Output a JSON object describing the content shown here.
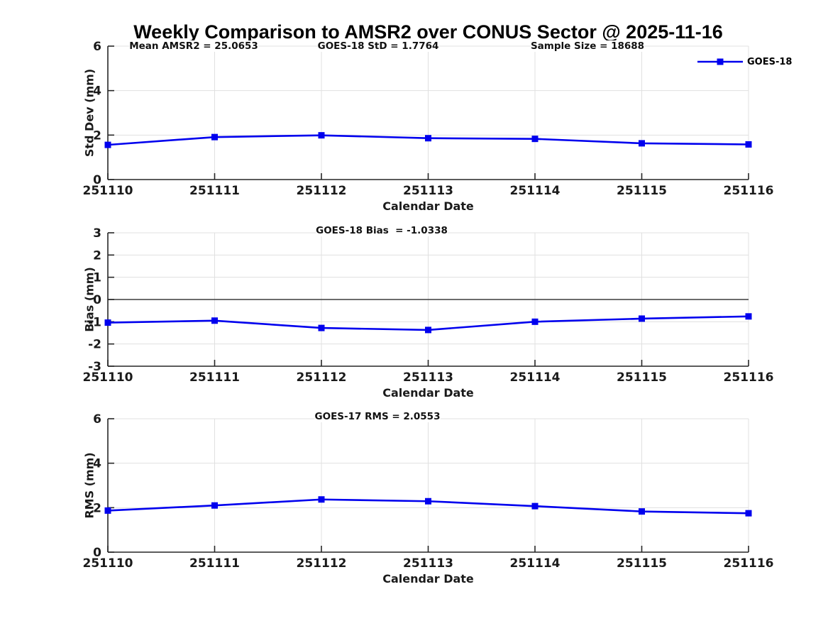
{
  "title": "Weekly Comparison to AMSR2 over CONUS Sector @ 2025-11-16",
  "legend": {
    "label": "GOES-18"
  },
  "colors": {
    "line": "#0000EE",
    "grid": "#E0E0E0",
    "axis": "#262626",
    "zero_line": "#3C3C3C",
    "text": "#1A1A1A"
  },
  "chart_data": [
    {
      "type": "line",
      "panel": "std-dev",
      "ylabel": "Std Dev (mm)",
      "xlabel": "Calendar Date",
      "ylim": [
        0,
        6
      ],
      "yticks": [
        0,
        2,
        4,
        6
      ],
      "grid": true,
      "legend_position": "top-right",
      "categories": [
        "251110",
        "251111",
        "251112",
        "251113",
        "251114",
        "251115",
        "251116"
      ],
      "series": [
        {
          "name": "GOES-18",
          "values": [
            1.56,
            1.91,
            1.99,
            1.86,
            1.83,
            1.63,
            1.58
          ]
        }
      ],
      "annotations": [
        {
          "text": "Mean AMSR2 = 25.0653"
        },
        {
          "text": "GOES-18 StD = 1.7764"
        },
        {
          "text": "Sample Size = 18688"
        }
      ]
    },
    {
      "type": "line",
      "panel": "bias",
      "ylabel": "Bias (mm)",
      "xlabel": "Calendar Date",
      "ylim": [
        -3,
        3
      ],
      "yticks": [
        3,
        2,
        1,
        0,
        -1,
        -2,
        -3
      ],
      "grid": true,
      "zero_line": true,
      "categories": [
        "251110",
        "251111",
        "251112",
        "251113",
        "251114",
        "251115",
        "251116"
      ],
      "series": [
        {
          "name": "GOES-18",
          "values": [
            -1.04,
            -0.95,
            -1.28,
            -1.37,
            -1.0,
            -0.86,
            -0.76
          ]
        }
      ],
      "annotations": [
        {
          "text": "GOES-18 Bias  = -1.0338"
        }
      ]
    },
    {
      "type": "line",
      "panel": "rms",
      "ylabel": "RMS (mm)",
      "xlabel": "Calendar Date",
      "ylim": [
        0,
        6
      ],
      "yticks": [
        0,
        2,
        4,
        6
      ],
      "grid": true,
      "categories": [
        "251110",
        "251111",
        "251112",
        "251113",
        "251114",
        "251115",
        "251116"
      ],
      "series": [
        {
          "name": "GOES-17",
          "values": [
            1.87,
            2.1,
            2.37,
            2.29,
            2.07,
            1.83,
            1.75
          ]
        }
      ],
      "annotations": [
        {
          "text": "GOES-17 RMS = 2.0553"
        }
      ]
    }
  ]
}
